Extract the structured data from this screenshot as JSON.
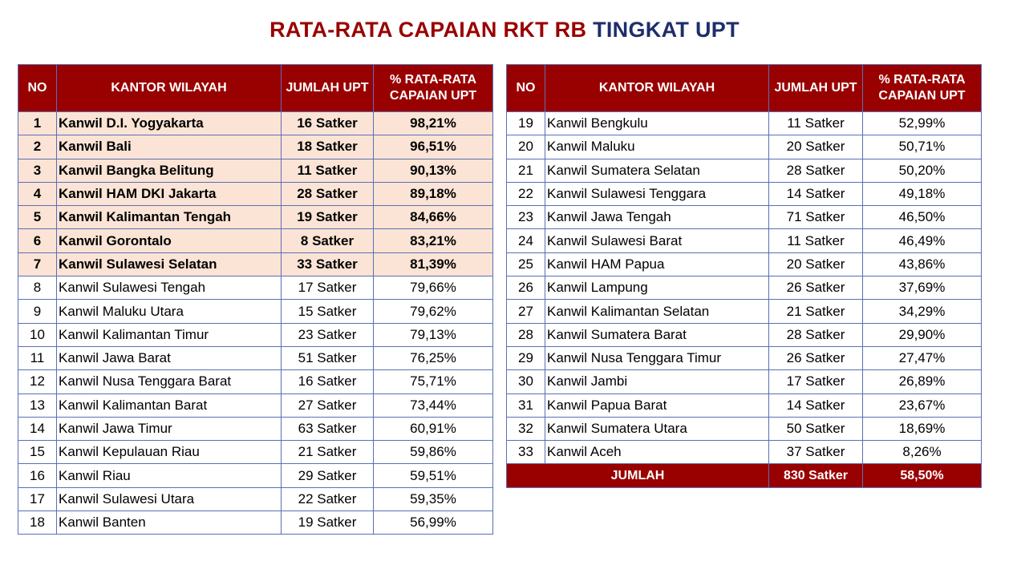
{
  "header": {
    "title_red": "RATA-RATA CAPAIAN RKT RB",
    "title_blue": "TINGKAT UPT"
  },
  "tables": [
    {
      "columns": [
        "NO",
        "KANTOR WILAYAH",
        "JUMLAH UPT",
        "% RATA-RATA CAPAIAN UPT"
      ],
      "rows": [
        [
          "1",
          "Kanwil D.I. Yogyakarta",
          "16 Satker",
          "98,21%"
        ],
        [
          "2",
          "Kanwil Bali",
          "18 Satker",
          "96,51%"
        ],
        [
          "3",
          "Kanwil Bangka Belitung",
          "11 Satker",
          "90,13%"
        ],
        [
          "4",
          "Kanwil HAM DKI Jakarta",
          "28 Satker",
          "89,18%"
        ],
        [
          "5",
          "Kanwil Kalimantan Tengah",
          "19 Satker",
          "84,66%"
        ],
        [
          "6",
          "Kanwil Gorontalo",
          "8 Satker",
          "83,21%"
        ],
        [
          "7",
          "Kanwil Sulawesi Selatan",
          "33 Satker",
          "81,39%"
        ],
        [
          "8",
          "Kanwil Sulawesi Tengah",
          "17 Satker",
          "79,66%"
        ],
        [
          "9",
          "Kanwil Maluku Utara",
          "15 Satker",
          "79,62%"
        ],
        [
          "10",
          "Kanwil Kalimantan Timur",
          "23 Satker",
          "79,13%"
        ],
        [
          "11",
          "Kanwil Jawa Barat",
          "51 Satker",
          "76,25%"
        ],
        [
          "12",
          "Kanwil Nusa Tenggara Barat",
          "16 Satker",
          "75,71%"
        ],
        [
          "13",
          "Kanwil Kalimantan Barat",
          "27 Satker",
          "73,44%"
        ],
        [
          "14",
          "Kanwil Jawa Timur",
          "63 Satker",
          "60,91%"
        ],
        [
          "15",
          "Kanwil Kepulauan Riau",
          "21 Satker",
          "59,86%"
        ],
        [
          "16",
          "Kanwil Riau",
          "29 Satker",
          "59,51%"
        ],
        [
          "17",
          "Kanwil Sulawesi Utara",
          "22 Satker",
          "59,35%"
        ],
        [
          "18",
          "Kanwil Banten",
          "19 Satker",
          "56,99%"
        ]
      ]
    },
    {
      "columns": [
        "NO",
        "KANTOR WILAYAH",
        "JUMLAH UPT",
        "% RATA-RATA CAPAIAN UPT"
      ],
      "rows": [
        [
          "19",
          "Kanwil Bengkulu",
          "11 Satker",
          "52,99%"
        ],
        [
          "20",
          "Kanwil Maluku",
          "20 Satker",
          "50,71%"
        ],
        [
          "21",
          "Kanwil Sumatera Selatan",
          "28 Satker",
          "50,20%"
        ],
        [
          "22",
          "Kanwil Sulawesi Tenggara",
          "14 Satker",
          "49,18%"
        ],
        [
          "23",
          "Kanwil Jawa Tengah",
          "71 Satker",
          "46,50%"
        ],
        [
          "24",
          "Kanwil Sulawesi Barat",
          "11 Satker",
          "46,49%"
        ],
        [
          "25",
          "Kanwil HAM Papua",
          "20 Satker",
          "43,86%"
        ],
        [
          "26",
          "Kanwil Lampung",
          "26 Satker",
          "37,69%"
        ],
        [
          "27",
          "Kanwil Kalimantan Selatan",
          "21 Satker",
          "34,29%"
        ],
        [
          "28",
          "Kanwil Sumatera Barat",
          "28 Satker",
          "29,90%"
        ],
        [
          "29",
          "Kanwil Nusa Tenggara Timur",
          "26 Satker",
          "27,47%"
        ],
        [
          "30",
          "Kanwil Jambi",
          "17 Satker",
          "26,89%"
        ],
        [
          "31",
          "Kanwil Papua Barat",
          "14 Satker",
          "23,67%"
        ],
        [
          "32",
          "Kanwil Sumatera Utara",
          "50 Satker",
          "18,69%"
        ],
        [
          "33",
          "Kanwil Aceh",
          "37 Satker",
          "8,26%"
        ]
      ],
      "footer": [
        "JUMLAH",
        "830 Satker",
        "58,50%"
      ]
    }
  ]
}
